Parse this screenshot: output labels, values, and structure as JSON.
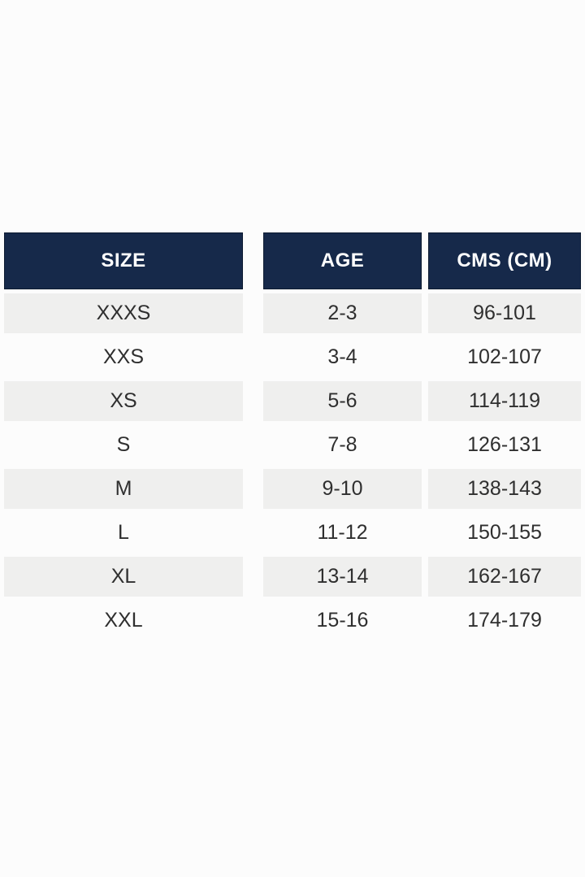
{
  "chart_data": {
    "type": "table",
    "title": "",
    "columns": [
      {
        "header": "SIZE",
        "values": [
          "XXXS",
          "XXS",
          "XS",
          "S",
          "M",
          "L",
          "XL",
          "XXL"
        ]
      },
      {
        "header": "AGE",
        "values": [
          "2-3",
          "3-4",
          "5-6",
          "7-8",
          "9-10",
          "11-12",
          "13-14",
          "15-16"
        ]
      },
      {
        "header": "CMS (CM)",
        "values": [
          "96-101",
          "102-107",
          "114-119",
          "126-131",
          "138-143",
          "150-155",
          "162-167",
          "174-179"
        ]
      }
    ],
    "layout_hints": {
      "alternating_rows": true,
      "shaded_row_indices": [
        0,
        2,
        4,
        6
      ]
    }
  },
  "colors": {
    "header_bg": "#16294a",
    "header_border": "#0d1b31",
    "header_text": "#ffffff",
    "alt_row_bg": "#efefee",
    "cell_text": "#2f2f2f",
    "page_bg": "#fcfcfc"
  }
}
